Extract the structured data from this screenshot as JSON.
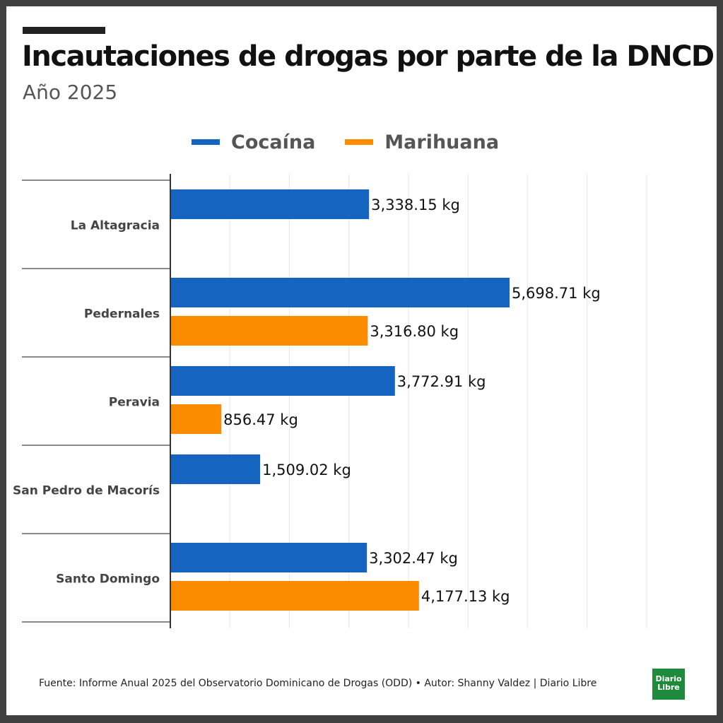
{
  "title": "Incautaciones de drogas por parte de la DNCD",
  "subtitle": "Año 2025",
  "footer": "Fuente: Informe Anual 2025 del Observatorio Dominicano de Drogas (ODD) • Autor: Shanny Valdez | Diario Libre",
  "logo": {
    "line1": "Diario",
    "line2": "Libre"
  },
  "colors": {
    "cocaina": "#1565c0",
    "marihuana": "#fb8c00",
    "grid": "#e6e6e6",
    "axis": "#333333"
  },
  "chart_data": {
    "type": "bar",
    "orientation": "horizontal",
    "categories": [
      "La Altagracia",
      "Pedernales",
      "Peravia",
      "San Pedro de Macorís",
      "Santo Domingo"
    ],
    "series": [
      {
        "name": "Cocaína",
        "values": [
          3338.15,
          5698.71,
          3772.91,
          1509.02,
          3302.47
        ],
        "labels": [
          "3,338.15 kg",
          "5,698.71 kg",
          "3,772.91 kg",
          "1,509.02 kg",
          "3,302.47 kg"
        ]
      },
      {
        "name": "Marihuana",
        "values": [
          null,
          3316.8,
          856.47,
          null,
          4177.13
        ],
        "labels": [
          "",
          "3,316.80 kg",
          "856.47 kg",
          "",
          "4,177.13 kg"
        ]
      }
    ],
    "xlim": [
      0,
      8000
    ],
    "grid": true,
    "legend": "top"
  }
}
